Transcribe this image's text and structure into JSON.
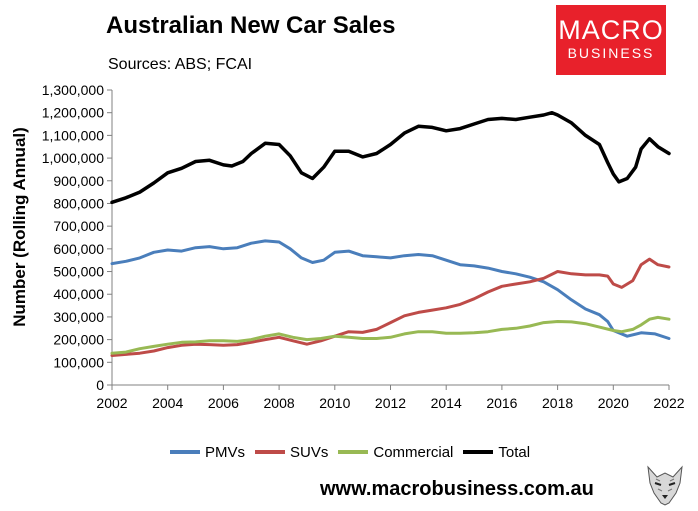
{
  "header": {
    "title": "Australian New Car Sales",
    "subtitle": "Sources: ABS; FCAI"
  },
  "logo": {
    "line1": "MACRO",
    "line2": "BUSINESS",
    "color": "#e8212b"
  },
  "footer": {
    "url": "www.macrobusiness.com.au"
  },
  "chart_data": {
    "type": "line",
    "title": "Australian New Car Sales",
    "subtitle": "Sources: ABS; FCAI",
    "xlabel": "",
    "ylabel": "Number (Rolling Annual)",
    "xlim": [
      2002,
      2022
    ],
    "ylim": [
      0,
      1300000
    ],
    "x_ticks": [
      2002,
      2004,
      2006,
      2008,
      2010,
      2012,
      2014,
      2016,
      2018,
      2020,
      2022
    ],
    "x_tick_labels": [
      "2002",
      "2004",
      "2006",
      "2008",
      "2010",
      "2012",
      "2014",
      "2016",
      "2018",
      "2020",
      "2022"
    ],
    "y_ticks": [
      0,
      100000,
      200000,
      300000,
      400000,
      500000,
      600000,
      700000,
      800000,
      900000,
      1000000,
      1100000,
      1200000,
      1300000
    ],
    "y_tick_labels": [
      "0",
      "100,000",
      "200,000",
      "300,000",
      "400,000",
      "500,000",
      "600,000",
      "700,000",
      "800,000",
      "900,000",
      "1,000,000",
      "1,100,000",
      "1,200,000",
      "1,300,000"
    ],
    "grid": false,
    "legend_position": "bottom",
    "series": [
      {
        "name": "PMVs",
        "color": "#4a7ebb",
        "points": [
          [
            2002,
            535000
          ],
          [
            2002.5,
            545000
          ],
          [
            2003,
            560000
          ],
          [
            2003.5,
            585000
          ],
          [
            2004,
            595000
          ],
          [
            2004.5,
            590000
          ],
          [
            2005,
            605000
          ],
          [
            2005.5,
            610000
          ],
          [
            2006,
            600000
          ],
          [
            2006.5,
            605000
          ],
          [
            2007,
            625000
          ],
          [
            2007.5,
            635000
          ],
          [
            2008,
            630000
          ],
          [
            2008.4,
            600000
          ],
          [
            2008.8,
            560000
          ],
          [
            2009.2,
            540000
          ],
          [
            2009.6,
            550000
          ],
          [
            2010,
            585000
          ],
          [
            2010.5,
            590000
          ],
          [
            2011,
            570000
          ],
          [
            2011.5,
            565000
          ],
          [
            2012,
            560000
          ],
          [
            2012.5,
            570000
          ],
          [
            2013,
            575000
          ],
          [
            2013.5,
            570000
          ],
          [
            2014,
            550000
          ],
          [
            2014.5,
            530000
          ],
          [
            2015,
            525000
          ],
          [
            2015.5,
            515000
          ],
          [
            2016,
            500000
          ],
          [
            2016.5,
            490000
          ],
          [
            2017,
            475000
          ],
          [
            2017.5,
            455000
          ],
          [
            2018,
            420000
          ],
          [
            2018.5,
            375000
          ],
          [
            2019,
            335000
          ],
          [
            2019.5,
            310000
          ],
          [
            2019.8,
            280000
          ],
          [
            2020,
            240000
          ],
          [
            2020.5,
            215000
          ],
          [
            2021,
            230000
          ],
          [
            2021.5,
            225000
          ],
          [
            2022,
            205000
          ]
        ]
      },
      {
        "name": "SUVs",
        "color": "#be4b48",
        "points": [
          [
            2002,
            130000
          ],
          [
            2002.5,
            135000
          ],
          [
            2003,
            140000
          ],
          [
            2003.5,
            150000
          ],
          [
            2004,
            165000
          ],
          [
            2004.5,
            175000
          ],
          [
            2005,
            180000
          ],
          [
            2005.5,
            178000
          ],
          [
            2006,
            175000
          ],
          [
            2006.5,
            178000
          ],
          [
            2007,
            188000
          ],
          [
            2007.5,
            200000
          ],
          [
            2008,
            210000
          ],
          [
            2008.5,
            195000
          ],
          [
            2009,
            180000
          ],
          [
            2009.5,
            195000
          ],
          [
            2010,
            215000
          ],
          [
            2010.5,
            235000
          ],
          [
            2011,
            232000
          ],
          [
            2011.5,
            245000
          ],
          [
            2012,
            275000
          ],
          [
            2012.5,
            305000
          ],
          [
            2013,
            320000
          ],
          [
            2013.5,
            330000
          ],
          [
            2014,
            340000
          ],
          [
            2014.5,
            355000
          ],
          [
            2015,
            380000
          ],
          [
            2015.5,
            410000
          ],
          [
            2016,
            435000
          ],
          [
            2016.5,
            445000
          ],
          [
            2017,
            455000
          ],
          [
            2017.5,
            470000
          ],
          [
            2018,
            500000
          ],
          [
            2018.5,
            490000
          ],
          [
            2019,
            485000
          ],
          [
            2019.5,
            485000
          ],
          [
            2019.8,
            480000
          ],
          [
            2020,
            445000
          ],
          [
            2020.3,
            430000
          ],
          [
            2020.7,
            460000
          ],
          [
            2021,
            530000
          ],
          [
            2021.3,
            555000
          ],
          [
            2021.6,
            530000
          ],
          [
            2022,
            520000
          ]
        ]
      },
      {
        "name": "Commercial",
        "color": "#98b954",
        "points": [
          [
            2002,
            140000
          ],
          [
            2002.5,
            145000
          ],
          [
            2003,
            160000
          ],
          [
            2003.5,
            170000
          ],
          [
            2004,
            180000
          ],
          [
            2004.5,
            188000
          ],
          [
            2005,
            190000
          ],
          [
            2005.5,
            195000
          ],
          [
            2006,
            195000
          ],
          [
            2006.5,
            192000
          ],
          [
            2007,
            200000
          ],
          [
            2007.5,
            215000
          ],
          [
            2008,
            225000
          ],
          [
            2008.5,
            210000
          ],
          [
            2009,
            200000
          ],
          [
            2009.5,
            205000
          ],
          [
            2010,
            215000
          ],
          [
            2010.5,
            210000
          ],
          [
            2011,
            205000
          ],
          [
            2011.5,
            205000
          ],
          [
            2012,
            210000
          ],
          [
            2012.5,
            225000
          ],
          [
            2013,
            235000
          ],
          [
            2013.5,
            235000
          ],
          [
            2014,
            228000
          ],
          [
            2014.5,
            228000
          ],
          [
            2015,
            230000
          ],
          [
            2015.5,
            235000
          ],
          [
            2016,
            245000
          ],
          [
            2016.5,
            250000
          ],
          [
            2017,
            260000
          ],
          [
            2017.5,
            275000
          ],
          [
            2018,
            280000
          ],
          [
            2018.5,
            278000
          ],
          [
            2019,
            270000
          ],
          [
            2019.5,
            255000
          ],
          [
            2020,
            240000
          ],
          [
            2020.3,
            235000
          ],
          [
            2020.7,
            245000
          ],
          [
            2021,
            265000
          ],
          [
            2021.3,
            290000
          ],
          [
            2021.6,
            298000
          ],
          [
            2022,
            290000
          ]
        ]
      },
      {
        "name": "Total",
        "color": "#000000",
        "points": [
          [
            2002,
            805000
          ],
          [
            2002.5,
            825000
          ],
          [
            2003,
            850000
          ],
          [
            2003.5,
            890000
          ],
          [
            2004,
            935000
          ],
          [
            2004.5,
            955000
          ],
          [
            2005,
            985000
          ],
          [
            2005.5,
            990000
          ],
          [
            2006,
            970000
          ],
          [
            2006.3,
            965000
          ],
          [
            2006.7,
            985000
          ],
          [
            2007,
            1020000
          ],
          [
            2007.5,
            1065000
          ],
          [
            2008,
            1060000
          ],
          [
            2008.4,
            1010000
          ],
          [
            2008.8,
            935000
          ],
          [
            2009.2,
            910000
          ],
          [
            2009.6,
            960000
          ],
          [
            2010,
            1030000
          ],
          [
            2010.5,
            1030000
          ],
          [
            2011,
            1005000
          ],
          [
            2011.5,
            1020000
          ],
          [
            2012,
            1060000
          ],
          [
            2012.5,
            1110000
          ],
          [
            2013,
            1140000
          ],
          [
            2013.5,
            1135000
          ],
          [
            2014,
            1120000
          ],
          [
            2014.5,
            1130000
          ],
          [
            2015,
            1150000
          ],
          [
            2015.5,
            1170000
          ],
          [
            2016,
            1175000
          ],
          [
            2016.5,
            1170000
          ],
          [
            2017,
            1180000
          ],
          [
            2017.5,
            1190000
          ],
          [
            2017.8,
            1200000
          ],
          [
            2018,
            1190000
          ],
          [
            2018.5,
            1155000
          ],
          [
            2019,
            1100000
          ],
          [
            2019.5,
            1060000
          ],
          [
            2019.8,
            980000
          ],
          [
            2020,
            930000
          ],
          [
            2020.2,
            895000
          ],
          [
            2020.5,
            910000
          ],
          [
            2020.8,
            960000
          ],
          [
            2021,
            1040000
          ],
          [
            2021.3,
            1085000
          ],
          [
            2021.6,
            1050000
          ],
          [
            2022,
            1020000
          ]
        ]
      }
    ]
  }
}
